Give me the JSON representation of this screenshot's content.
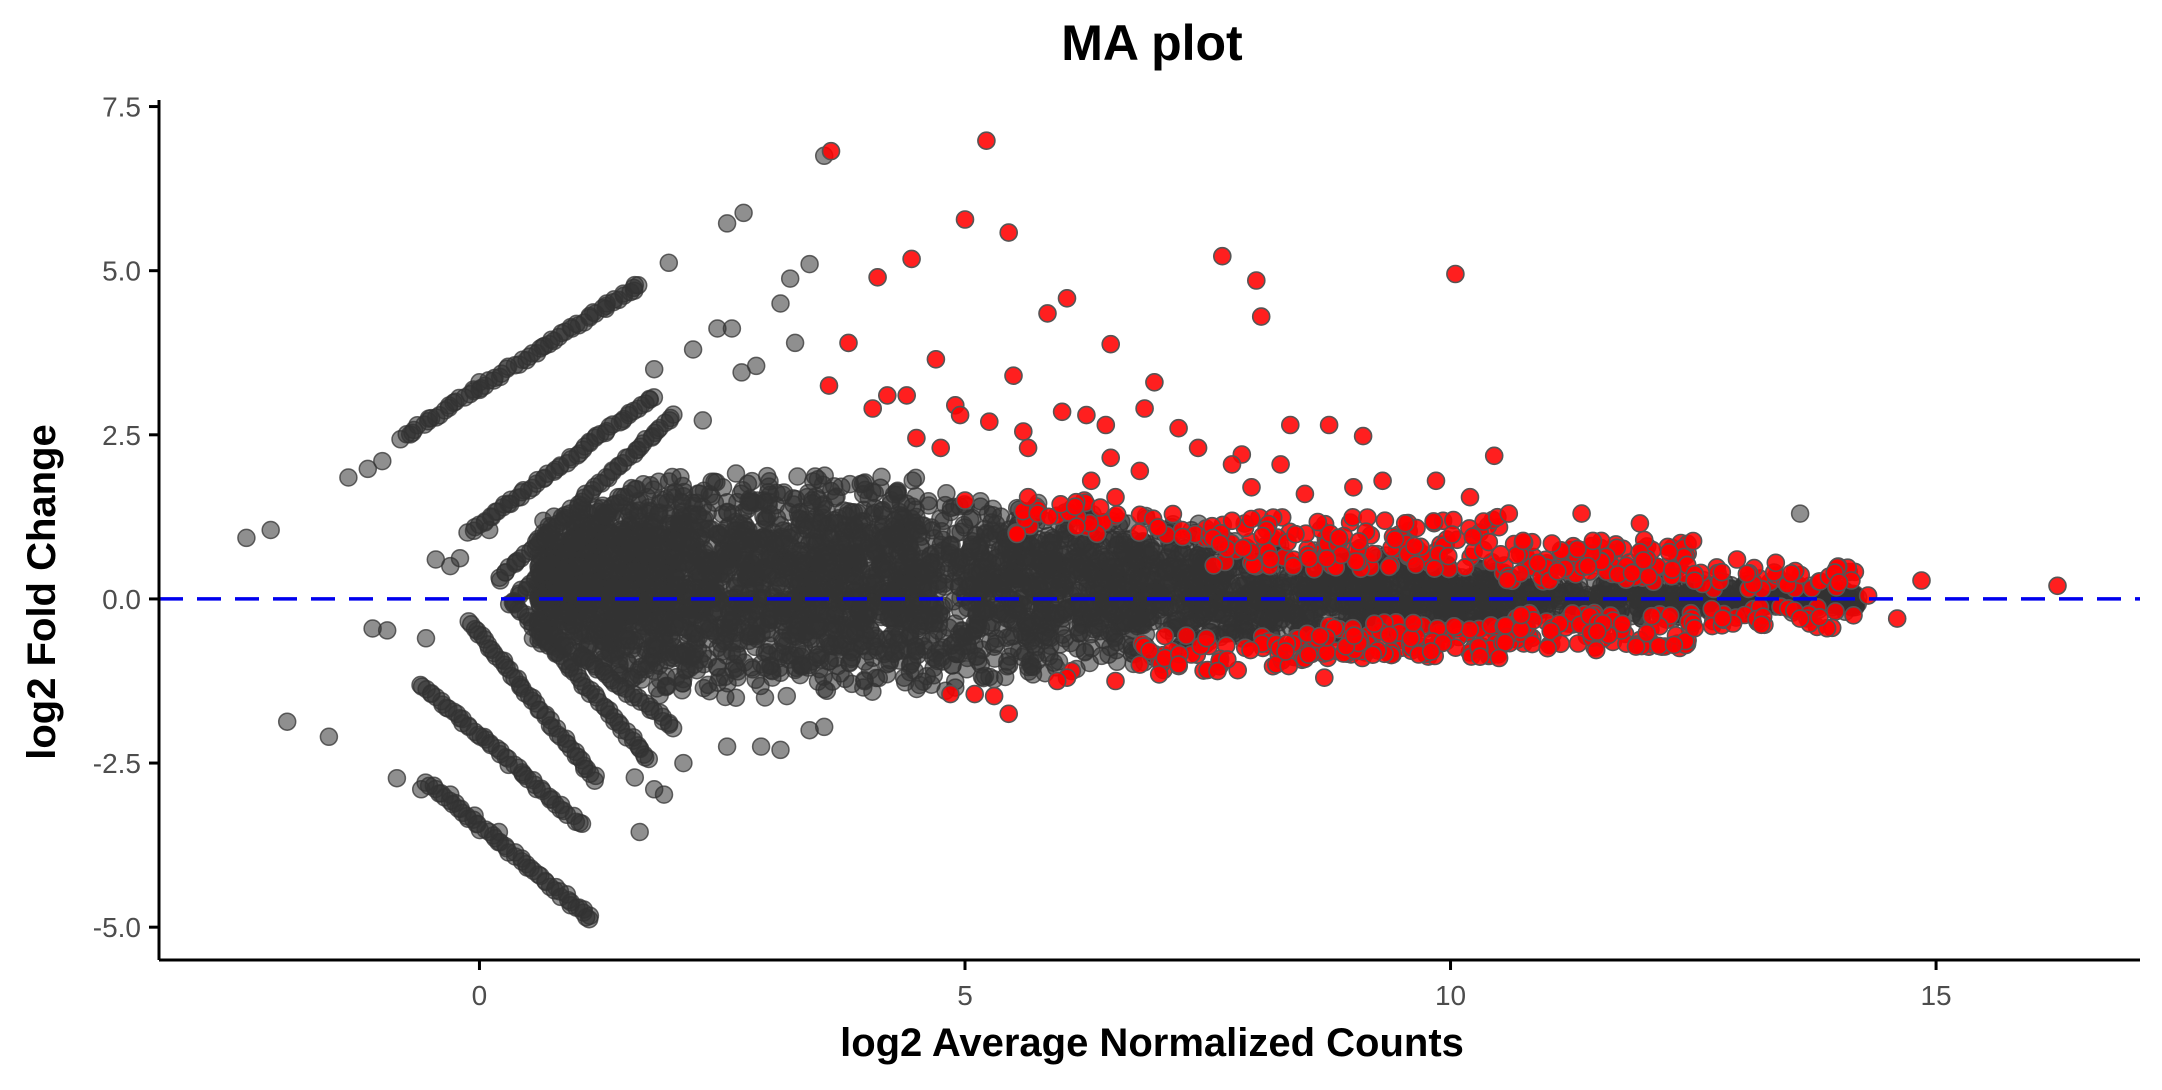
{
  "chart_data": {
    "type": "scatter",
    "title": "MA plot",
    "xlabel": "log2 Average Normalized Counts",
    "ylabel": "log2 Fold Change",
    "xlim": [
      -3.3,
      17.1
    ],
    "ylim": [
      -5.5,
      7.6
    ],
    "x_ticks": [
      0,
      5,
      10,
      15
    ],
    "x_tick_labels": [
      "0",
      "5",
      "10",
      "15"
    ],
    "y_ticks": [
      -5.0,
      -2.5,
      0.0,
      2.5,
      5.0,
      7.5
    ],
    "y_tick_labels": [
      "-5.0",
      "-2.5",
      "0.0",
      "2.5",
      "5.0",
      "7.5"
    ],
    "reference_line": {
      "y": 0,
      "style": "dashed",
      "color": "#0000ee"
    },
    "grid": false,
    "legend": "none",
    "colors": {
      "not_significant": "#333333",
      "significant": "#ff0000"
    },
    "series": [
      {
        "group": "not_significant",
        "color": "#333333",
        "points": [
          [
            -2.4,
            0.93
          ],
          [
            -2.15,
            1.05
          ],
          [
            -1.98,
            -1.87
          ],
          [
            -1.55,
            -2.1
          ],
          [
            -1.1,
            -0.45
          ],
          [
            -0.95,
            -0.48
          ],
          [
            -0.85,
            -2.73
          ],
          [
            -0.55,
            -0.6
          ],
          [
            -0.6,
            -2.9
          ],
          [
            -1.35,
            1.85
          ],
          [
            -1.15,
            1.98
          ],
          [
            -1.0,
            2.1
          ],
          [
            -0.3,
            -2.98
          ],
          [
            -0.05,
            -3.3
          ],
          [
            0.2,
            -3.55
          ],
          [
            -0.3,
            0.5
          ],
          [
            -0.2,
            0.62
          ],
          [
            0.3,
            1.45
          ],
          [
            0.55,
            -0.6
          ],
          [
            3.55,
            6.75
          ],
          [
            2.55,
            5.72
          ],
          [
            2.72,
            5.88
          ],
          [
            1.95,
            5.12
          ],
          [
            1.6,
            4.78
          ],
          [
            2.6,
            4.12
          ],
          [
            2.45,
            4.12
          ],
          [
            3.2,
            4.88
          ],
          [
            3.1,
            4.5
          ],
          [
            3.4,
            5.1
          ],
          [
            2.2,
            3.8
          ],
          [
            3.25,
            3.9
          ],
          [
            2.85,
            3.55
          ],
          [
            1.8,
            3.5
          ],
          [
            2.7,
            3.45
          ],
          [
            2.3,
            2.72
          ],
          [
            1.6,
            -2.72
          ],
          [
            1.8,
            -2.9
          ],
          [
            2.1,
            -2.5
          ],
          [
            1.9,
            -2.98
          ],
          [
            2.55,
            -2.25
          ],
          [
            2.9,
            -2.25
          ],
          [
            3.1,
            -2.3
          ],
          [
            3.4,
            -2.0
          ],
          [
            3.55,
            -1.95
          ],
          [
            4.8,
            -1.4
          ],
          [
            4.9,
            -1.35
          ],
          [
            5.7,
            -1.15
          ],
          [
            13.6,
            1.3
          ],
          [
            13.05,
            0.04
          ],
          [
            13.4,
            -0.05
          ],
          [
            14.0,
            -0.08
          ],
          [
            1.1,
            -4.85
          ],
          [
            0.9,
            -4.5
          ],
          [
            1.65,
            -3.55
          ],
          [
            0.1,
            1.05
          ],
          [
            -0.45,
            0.6
          ],
          [
            0.0,
            3.3
          ],
          [
            1.3,
            4.42
          ]
        ],
        "bands": [
          {
            "from": [
              -0.8,
              2.45
            ],
            "to": [
              1.65,
              4.78
            ]
          },
          {
            "from": [
              -0.1,
              1.0
            ],
            "to": [
              1.8,
              3.1
            ]
          },
          {
            "from": [
              0.2,
              0.3
            ],
            "to": [
              2.0,
              2.8
            ]
          },
          {
            "from": [
              0.3,
              -0.1
            ],
            "to": [
              1.6,
              1.7
            ]
          },
          {
            "from": [
              -0.6,
              -1.3
            ],
            "to": [
              1.05,
              -3.45
            ]
          },
          {
            "from": [
              -0.1,
              -0.35
            ],
            "to": [
              1.2,
              -2.75
            ]
          },
          {
            "from": [
              0.35,
              -0.05
            ],
            "to": [
              1.75,
              -2.45
            ]
          },
          {
            "from": [
              0.6,
              -0.35
            ],
            "to": [
              2.0,
              -1.95
            ]
          },
          {
            "from": [
              -0.55,
              -2.78
            ],
            "to": [
              1.15,
              -4.88
            ]
          }
        ],
        "cloud": [
          {
            "x": [
              0.6,
              2.0
            ],
            "y_halfwidth": [
              1.0,
              1.75
            ],
            "y_center": 0.2,
            "n": 900
          },
          {
            "x": [
              2.0,
              4.5
            ],
            "y_halfwidth": [
              1.75,
              1.65
            ],
            "y_center": 0.2,
            "n": 1300
          },
          {
            "x": [
              4.5,
              7.5
            ],
            "y_halfwidth": [
              1.55,
              1.0
            ],
            "y_center": 0.15,
            "n": 1100
          },
          {
            "x": [
              7.5,
              10.5
            ],
            "y_halfwidth": [
              0.9,
              0.5
            ],
            "y_center": 0.05,
            "n": 800
          },
          {
            "x": [
              10.5,
              14.2
            ],
            "y_halfwidth": [
              0.45,
              0.2
            ],
            "y_center": 0.0,
            "n": 450
          }
        ]
      },
      {
        "group": "significant",
        "color": "#ff0000",
        "points": [
          [
            3.62,
            6.82
          ],
          [
            5.22,
            6.98
          ],
          [
            5.0,
            5.78
          ],
          [
            5.45,
            5.58
          ],
          [
            7.65,
            5.22
          ],
          [
            10.05,
            4.95
          ],
          [
            8.0,
            4.85
          ],
          [
            4.1,
            4.9
          ],
          [
            4.45,
            5.18
          ],
          [
            6.05,
            4.58
          ],
          [
            5.85,
            4.35
          ],
          [
            8.05,
            4.3
          ],
          [
            3.8,
            3.9
          ],
          [
            6.5,
            3.88
          ],
          [
            4.7,
            3.65
          ],
          [
            5.5,
            3.4
          ],
          [
            6.95,
            3.3
          ],
          [
            3.6,
            3.25
          ],
          [
            4.2,
            3.1
          ],
          [
            4.4,
            3.1
          ],
          [
            4.05,
            2.9
          ],
          [
            4.9,
            2.95
          ],
          [
            4.95,
            2.8
          ],
          [
            5.25,
            2.7
          ],
          [
            5.6,
            2.55
          ],
          [
            6.0,
            2.85
          ],
          [
            6.25,
            2.8
          ],
          [
            6.85,
            2.9
          ],
          [
            6.45,
            2.65
          ],
          [
            8.35,
            2.65
          ],
          [
            7.2,
            2.6
          ],
          [
            7.4,
            2.3
          ],
          [
            8.75,
            2.65
          ],
          [
            9.1,
            2.48
          ],
          [
            4.5,
            2.45
          ],
          [
            4.75,
            2.3
          ],
          [
            5.65,
            2.3
          ],
          [
            6.5,
            2.15
          ],
          [
            7.85,
            2.2
          ],
          [
            10.45,
            2.18
          ],
          [
            7.75,
            2.05
          ],
          [
            8.25,
            2.05
          ],
          [
            6.3,
            1.8
          ],
          [
            6.8,
            1.95
          ],
          [
            9.0,
            1.7
          ],
          [
            9.3,
            1.8
          ],
          [
            9.85,
            1.8
          ],
          [
            5.65,
            1.55
          ],
          [
            8.5,
            1.6
          ],
          [
            10.2,
            1.55
          ],
          [
            6.55,
            1.55
          ],
          [
            5.0,
            1.5
          ],
          [
            7.95,
            1.7
          ],
          [
            10.6,
            1.3
          ],
          [
            11.35,
            1.3
          ],
          [
            11.95,
            1.15
          ],
          [
            12.95,
            0.6
          ],
          [
            13.35,
            0.55
          ],
          [
            14.85,
            0.28
          ],
          [
            16.25,
            0.2
          ],
          [
            14.0,
            0.25
          ],
          [
            14.3,
            0.05
          ],
          [
            14.15,
            -0.25
          ],
          [
            14.6,
            -0.3
          ],
          [
            13.8,
            -0.28
          ],
          [
            13.6,
            -0.3
          ],
          [
            12.8,
            -0.3
          ],
          [
            12.3,
            -0.7
          ],
          [
            11.5,
            -0.78
          ],
          [
            11.0,
            -0.75
          ],
          [
            10.5,
            -0.9
          ],
          [
            9.8,
            -0.8
          ],
          [
            9.2,
            -0.85
          ],
          [
            8.7,
            -1.2
          ],
          [
            8.3,
            -0.8
          ],
          [
            7.6,
            -1.1
          ],
          [
            7.2,
            -1.0
          ],
          [
            7.0,
            -1.15
          ],
          [
            6.8,
            -1.0
          ],
          [
            6.55,
            -1.25
          ],
          [
            6.1,
            -1.1
          ],
          [
            6.05,
            -1.2
          ],
          [
            5.95,
            -1.25
          ],
          [
            5.3,
            -1.48
          ],
          [
            5.1,
            -1.45
          ],
          [
            5.45,
            -1.75
          ],
          [
            4.85,
            -1.45
          ]
        ],
        "clusters": [
          {
            "x": [
              5.5,
              7.5
            ],
            "y": [
              0.9,
              1.5
            ],
            "n": 40
          },
          {
            "x": [
              7.5,
              10.5
            ],
            "y": [
              0.45,
              1.25
            ],
            "n": 140
          },
          {
            "x": [
              10.5,
              12.5
            ],
            "y": [
              0.25,
              0.9
            ],
            "n": 120
          },
          {
            "x": [
              12.5,
              14.2
            ],
            "y": [
              0.1,
              0.5
            ],
            "n": 40
          },
          {
            "x": [
              6.8,
              8.5
            ],
            "y": [
              -1.1,
              -0.55
            ],
            "n": 50
          },
          {
            "x": [
              8.5,
              10.5
            ],
            "y": [
              -0.9,
              -0.35
            ],
            "n": 110
          },
          {
            "x": [
              10.5,
              12.5
            ],
            "y": [
              -0.75,
              -0.2
            ],
            "n": 90
          },
          {
            "x": [
              12.5,
              14.0
            ],
            "y": [
              -0.45,
              -0.1
            ],
            "n": 30
          }
        ]
      }
    ]
  }
}
